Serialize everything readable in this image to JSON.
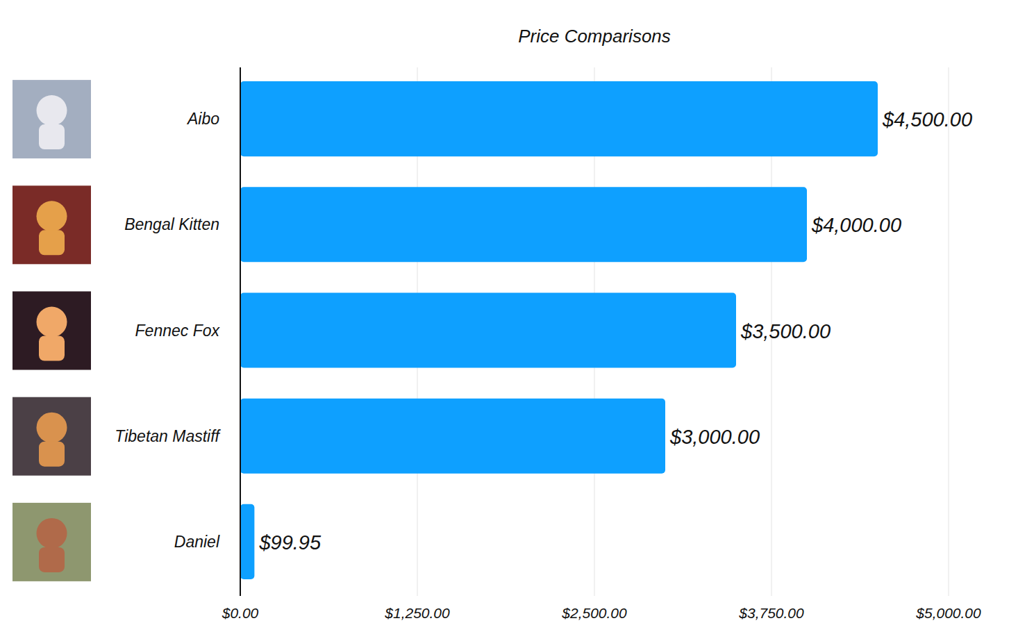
{
  "chart_data": {
    "type": "bar",
    "title": "Price Comparisons",
    "orientation": "horizontal",
    "categories": [
      "Aibo",
      "Bengal Kitten",
      "Fennec Fox",
      "Tibetan Mastiff",
      "Daniel"
    ],
    "values": [
      4500,
      4000,
      3500,
      3000,
      99.95
    ],
    "value_labels": [
      "$4,500.00",
      "$4,000.00",
      "$3,500.00",
      "$3,000.00",
      "$99.95"
    ],
    "color": "#0ea0ff",
    "xlim": [
      0,
      5000
    ],
    "xticks": [
      {
        "value": 0,
        "label": "$0.00"
      },
      {
        "value": 1250,
        "label": "$1,250.00"
      },
      {
        "value": 2500,
        "label": "$2,500.00"
      },
      {
        "value": 3750,
        "label": "$3,750.00"
      },
      {
        "value": 5000,
        "label": "$5,000.00"
      }
    ],
    "grid": true,
    "data_labels": true
  }
}
